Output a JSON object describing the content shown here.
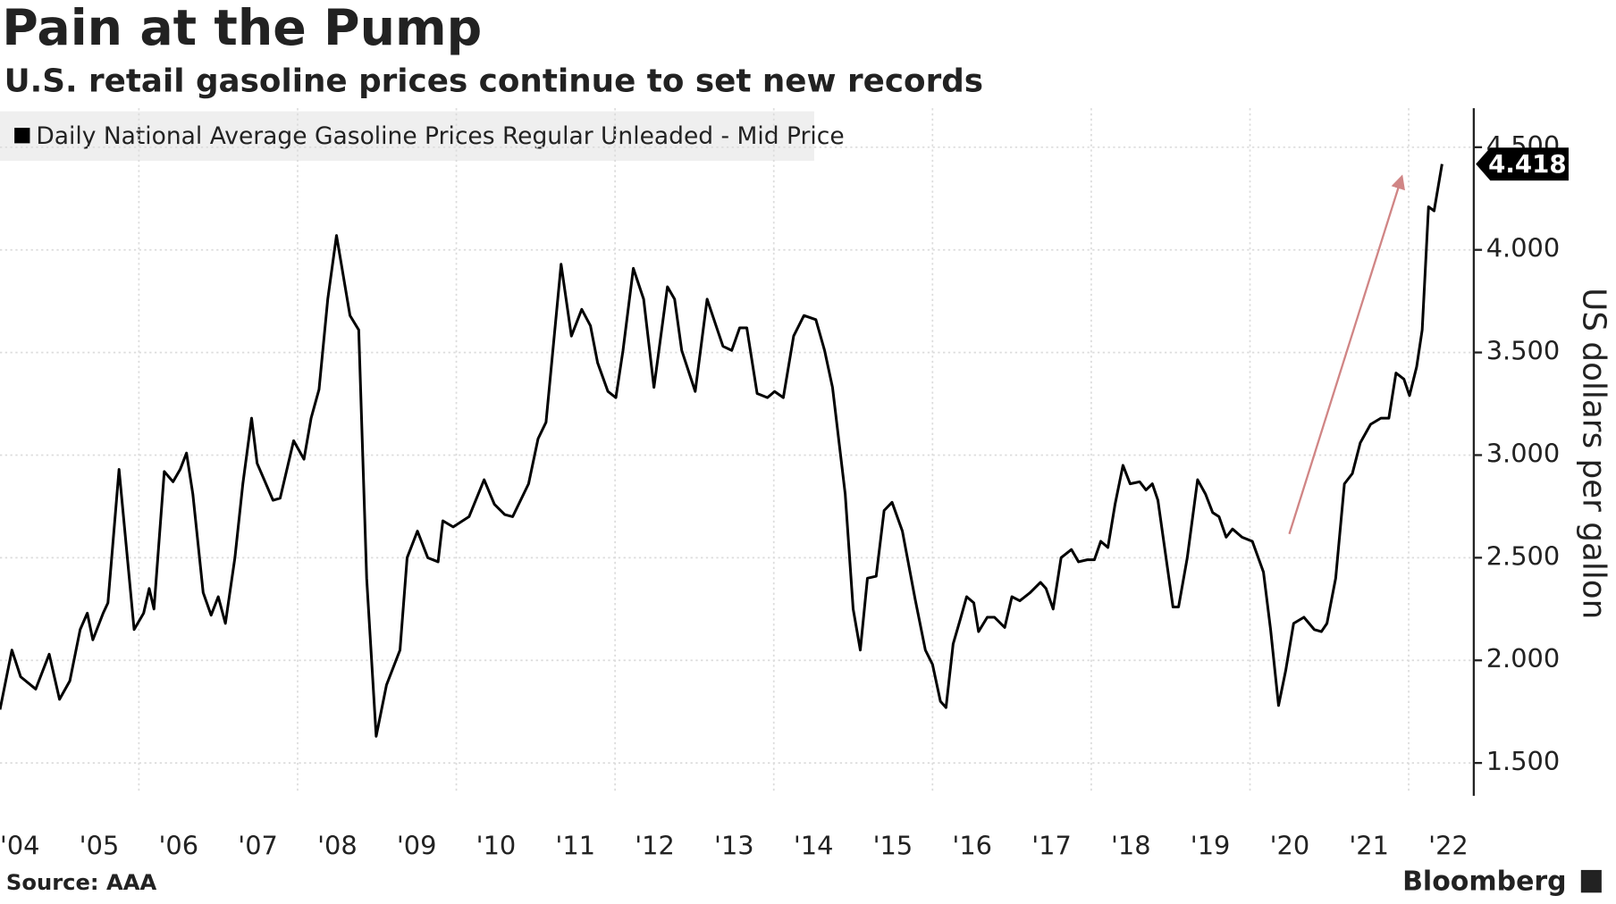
{
  "chart_data": {
    "type": "line",
    "title": "Pain at the Pump",
    "subtitle": "U.S. retail gasoline prices continue to set new records",
    "ylabel": "US dollars per gallon",
    "source": "Source: AAA",
    "brand": "Bloomberg",
    "x": [
      2004.25,
      2004.4,
      2004.51,
      2004.7,
      2004.87,
      2005.0,
      2005.13,
      2005.26,
      2005.35,
      2005.42,
      2005.55,
      2005.61,
      2005.75,
      2005.94,
      2006.06,
      2006.13,
      2006.19,
      2006.32,
      2006.43,
      2006.52,
      2006.6,
      2006.68,
      2006.81,
      2006.91,
      2007.0,
      2007.09,
      2007.21,
      2007.31,
      2007.42,
      2007.49,
      2007.69,
      2007.78,
      2007.95,
      2008.08,
      2008.17,
      2008.27,
      2008.38,
      2008.49,
      2008.66,
      2008.77,
      2008.87,
      2008.99,
      2009.12,
      2009.29,
      2009.38,
      2009.51,
      2009.64,
      2009.77,
      2009.83,
      2009.96,
      2010.16,
      2010.35,
      2010.48,
      2010.61,
      2010.71,
      2010.91,
      2011.03,
      2011.13,
      2011.32,
      2011.45,
      2011.58,
      2011.69,
      2011.78,
      2011.91,
      2012.01,
      2012.1,
      2012.23,
      2012.36,
      2012.49,
      2012.66,
      2012.75,
      2012.84,
      2013.01,
      2013.16,
      2013.29,
      2013.36,
      2013.47,
      2013.57,
      2013.66,
      2013.79,
      2013.92,
      2014.01,
      2014.12,
      2014.25,
      2014.38,
      2014.53,
      2014.64,
      2014.74,
      2014.9,
      2015.0,
      2015.09,
      2015.18,
      2015.29,
      2015.39,
      2015.49,
      2015.62,
      2015.78,
      2015.91,
      2016.0,
      2016.1,
      2016.17,
      2016.26,
      2016.35,
      2016.43,
      2016.52,
      2016.58,
      2016.69,
      2016.78,
      2016.91,
      2017.0,
      2017.1,
      2017.23,
      2017.36,
      2017.43,
      2017.52,
      2017.62,
      2017.75,
      2017.84,
      2017.95,
      2018.04,
      2018.12,
      2018.21,
      2018.3,
      2018.4,
      2018.49,
      2018.61,
      2018.69,
      2018.77,
      2018.84,
      2019.03,
      2019.1,
      2019.21,
      2019.34,
      2019.44,
      2019.53,
      2019.61,
      2019.7,
      2019.78,
      2019.9,
      2020.03,
      2020.17,
      2020.26,
      2020.36,
      2020.45,
      2020.55,
      2020.68,
      2020.81,
      2020.9,
      2020.97,
      2021.08,
      2021.19,
      2021.29,
      2021.39,
      2021.52,
      2021.65,
      2021.75,
      2021.84,
      2021.94,
      2022.01,
      2022.1,
      2022.17,
      2022.25,
      2022.32,
      2022.42
    ],
    "series": [
      {
        "name": "Daily National Average Gasoline Prices Regular Unleaded - Mid Price",
        "color": "#000000",
        "values": [
          1.76,
          2.05,
          1.92,
          1.86,
          2.03,
          1.81,
          1.9,
          2.15,
          2.23,
          2.1,
          2.23,
          2.28,
          2.93,
          2.15,
          2.23,
          2.35,
          2.25,
          2.92,
          2.87,
          2.93,
          3.01,
          2.81,
          2.33,
          2.22,
          2.31,
          2.18,
          2.5,
          2.86,
          3.18,
          2.96,
          2.78,
          2.79,
          3.07,
          2.98,
          3.18,
          3.32,
          3.76,
          4.07,
          3.68,
          3.61,
          2.4,
          1.63,
          1.88,
          2.05,
          2.5,
          2.63,
          2.5,
          2.48,
          2.68,
          2.65,
          2.7,
          2.88,
          2.76,
          2.71,
          2.7,
          2.86,
          3.08,
          3.16,
          3.93,
          3.58,
          3.71,
          3.63,
          3.45,
          3.31,
          3.28,
          3.51,
          3.91,
          3.76,
          3.33,
          3.82,
          3.76,
          3.51,
          3.31,
          3.76,
          3.61,
          3.53,
          3.51,
          3.62,
          3.62,
          3.3,
          3.28,
          3.31,
          3.28,
          3.58,
          3.68,
          3.66,
          3.51,
          3.33,
          2.81,
          2.25,
          2.05,
          2.4,
          2.41,
          2.73,
          2.77,
          2.63,
          2.3,
          2.05,
          1.98,
          1.8,
          1.77,
          2.08,
          2.2,
          2.31,
          2.28,
          2.14,
          2.21,
          2.21,
          2.16,
          2.31,
          2.29,
          2.33,
          2.38,
          2.35,
          2.25,
          2.5,
          2.54,
          2.48,
          2.49,
          2.49,
          2.58,
          2.55,
          2.76,
          2.95,
          2.86,
          2.87,
          2.83,
          2.86,
          2.78,
          2.26,
          2.26,
          2.5,
          2.88,
          2.81,
          2.72,
          2.7,
          2.6,
          2.64,
          2.6,
          2.58,
          2.43,
          2.15,
          1.78,
          1.95,
          2.18,
          2.21,
          2.15,
          2.14,
          2.18,
          2.4,
          2.86,
          2.91,
          3.06,
          3.15,
          3.18,
          3.18,
          3.4,
          3.37,
          3.29,
          3.43,
          3.61,
          4.21,
          4.19,
          4.418
        ]
      }
    ],
    "xlim": [
      2004.25,
      2022.82
    ],
    "xticks": [
      {
        "value": 2004,
        "label": "'04"
      },
      {
        "value": 2005,
        "label": "'05"
      },
      {
        "value": 2006,
        "label": "'06"
      },
      {
        "value": 2007,
        "label": "'07"
      },
      {
        "value": 2008,
        "label": "'08"
      },
      {
        "value": 2009,
        "label": "'09"
      },
      {
        "value": 2010,
        "label": "'10"
      },
      {
        "value": 2011,
        "label": "'11"
      },
      {
        "value": 2012,
        "label": "'12"
      },
      {
        "value": 2013,
        "label": "'13"
      },
      {
        "value": 2014,
        "label": "'14"
      },
      {
        "value": 2015,
        "label": "'15"
      },
      {
        "value": 2016,
        "label": "'16"
      },
      {
        "value": 2017,
        "label": "'17"
      },
      {
        "value": 2018,
        "label": "'18"
      },
      {
        "value": 2019,
        "label": "'19"
      },
      {
        "value": 2020,
        "label": "'20"
      },
      {
        "value": 2021,
        "label": "'21"
      },
      {
        "value": 2022,
        "label": "'22"
      }
    ],
    "ylim": [
      1.3,
      4.69
    ],
    "yticks": [
      {
        "value": 1.5,
        "label": "1.500"
      },
      {
        "value": 2,
        "label": "2.000"
      },
      {
        "value": 2.5,
        "label": "2.500"
      },
      {
        "value": 3,
        "label": "3.000"
      },
      {
        "value": 3.5,
        "label": "3.500"
      },
      {
        "value": 4,
        "label": "4.000"
      },
      {
        "value": 4.5,
        "label": "4.500"
      }
    ],
    "grid": true
  }
}
